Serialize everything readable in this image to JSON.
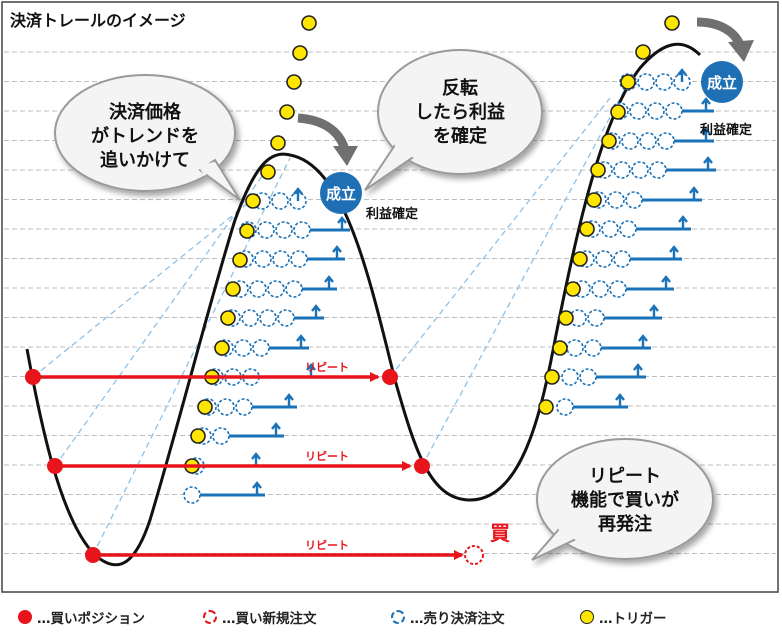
{
  "title": "決済トレールのイメージ",
  "bubbles": {
    "chase": [
      "決済価格",
      "がトレンドを",
      "追いかけて"
    ],
    "reversal": [
      "反転",
      "したら利益",
      "を確定"
    ],
    "repeat": [
      "リピート",
      "機能で買いが",
      "再発注"
    ]
  },
  "badges": {
    "filled": "成立",
    "profit": "利益確定"
  },
  "arrow_label": "リピート",
  "buy_label": "買",
  "legend": [
    {
      "icon": "red-dot-icon",
      "label": "…買いポジション"
    },
    {
      "icon": "red-dashed-circle-icon",
      "label": "…買い新規注文"
    },
    {
      "icon": "blue-dashed-circle-icon",
      "label": "…売り決済注文"
    },
    {
      "icon": "yellow-dot-icon",
      "label": "…トリガー"
    }
  ],
  "colors": {
    "buy": "#e8141b",
    "sell": "#1a72b8",
    "trigger": "#ffe600",
    "curve": "#111111",
    "bubble": "#f4f4f4",
    "badge": "#1f6fb4"
  }
}
